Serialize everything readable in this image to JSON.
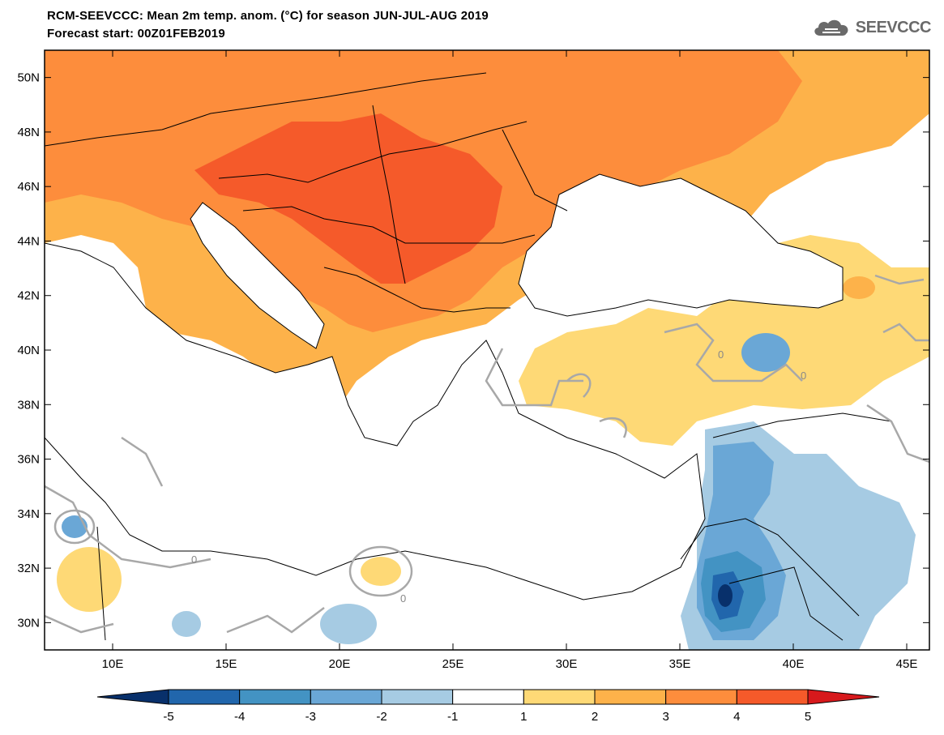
{
  "header": {
    "title": "RCM-SEEVCCC: Mean 2m temp. anom. (°C) for season JUN-JUL-AUG 2019",
    "subtitle": "Forecast start: 00Z01FEB2019",
    "logo_text": "SEEVCCC",
    "logo_icon": "cloud-icon"
  },
  "map": {
    "lon_range": [
      7,
      46
    ],
    "lat_range": [
      29,
      51
    ],
    "lon_ticks": [
      {
        "value": 10,
        "label": "10E"
      },
      {
        "value": 15,
        "label": "15E"
      },
      {
        "value": 20,
        "label": "20E"
      },
      {
        "value": 25,
        "label": "25E"
      },
      {
        "value": 30,
        "label": "30E"
      },
      {
        "value": 35,
        "label": "35E"
      },
      {
        "value": 40,
        "label": "40E"
      },
      {
        "value": 45,
        "label": "45E"
      }
    ],
    "lat_ticks": [
      {
        "value": 50,
        "label": "50N"
      },
      {
        "value": 48,
        "label": "48N"
      },
      {
        "value": 46,
        "label": "46N"
      },
      {
        "value": 44,
        "label": "44N"
      },
      {
        "value": 42,
        "label": "42N"
      },
      {
        "value": 40,
        "label": "40N"
      },
      {
        "value": 38,
        "label": "38N"
      },
      {
        "value": 36,
        "label": "36N"
      },
      {
        "value": 34,
        "label": "34N"
      },
      {
        "value": 32,
        "label": "32N"
      },
      {
        "value": 30,
        "label": "30N"
      }
    ],
    "contour_labels": [
      "0",
      "0",
      "0",
      "0"
    ]
  },
  "colorbar": {
    "boundaries": [
      "-5",
      "-4",
      "-3",
      "-2",
      "-1",
      "1",
      "2",
      "3",
      "4",
      "5"
    ],
    "colors": [
      "#08306b",
      "#2166ac",
      "#4393c3",
      "#6aa7d6",
      "#a6cbe3",
      "#ffffff",
      "#fed976",
      "#fdb24a",
      "#fd8d3c",
      "#f55a2a",
      "#d7191c"
    ]
  }
}
